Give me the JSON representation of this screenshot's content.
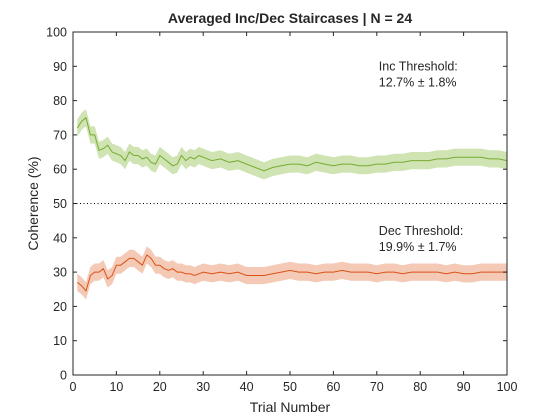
{
  "chart_data": {
    "type": "line",
    "title": "Averaged Inc/Dec Staircases | N = 24",
    "xlabel": "Trial Number",
    "ylabel": "Coherence (%)",
    "xlim": [
      0,
      100
    ],
    "ylim": [
      0,
      100
    ],
    "xticks": [
      0,
      10,
      20,
      30,
      40,
      50,
      60,
      70,
      80,
      90,
      100
    ],
    "yticks": [
      0,
      10,
      20,
      30,
      40,
      50,
      60,
      70,
      80,
      90,
      100
    ],
    "grid": false,
    "reference_line": {
      "y": 50,
      "style": "dotted"
    },
    "series": [
      {
        "color": "#77ac30",
        "band_color": "#cfe3b3",
        "band_halfwidth": 2.5,
        "x": [
          1,
          2,
          3,
          4,
          5,
          6,
          7,
          8,
          9,
          10,
          11,
          12,
          13,
          14,
          15,
          16,
          17,
          18,
          19,
          20,
          21,
          22,
          23,
          24,
          25,
          26,
          27,
          28,
          29,
          30,
          32,
          34,
          36,
          38,
          40,
          42,
          44,
          46,
          48,
          50,
          52,
          54,
          56,
          58,
          60,
          62,
          64,
          66,
          68,
          70,
          72,
          74,
          76,
          78,
          80,
          82,
          84,
          86,
          88,
          90,
          92,
          94,
          96,
          98,
          100
        ],
        "values": [
          72,
          74,
          75,
          70,
          70,
          65.5,
          66,
          67,
          65,
          64.5,
          64,
          62.5,
          65,
          64,
          64,
          63,
          63.5,
          62,
          61.5,
          64,
          63,
          62,
          61,
          61.5,
          64,
          62.5,
          63.5,
          63,
          64,
          63.5,
          62.5,
          63,
          62,
          62.5,
          61.5,
          60.5,
          59.5,
          60.5,
          61,
          61.5,
          61.5,
          61,
          62,
          61.5,
          61,
          61.5,
          61.5,
          61,
          61,
          61.5,
          61.5,
          62,
          62,
          62.5,
          62.5,
          62.5,
          63,
          63,
          63.5,
          63.5,
          63.5,
          63.5,
          63,
          63,
          62.5
        ]
      },
      {
        "color": "#d95319",
        "band_color": "#f4c9b5",
        "band_halfwidth": 2.5,
        "x": [
          1,
          2,
          3,
          4,
          5,
          6,
          7,
          8,
          9,
          10,
          11,
          12,
          13,
          14,
          15,
          16,
          17,
          18,
          19,
          20,
          21,
          22,
          23,
          24,
          25,
          26,
          27,
          28,
          29,
          30,
          32,
          34,
          36,
          38,
          40,
          42,
          44,
          46,
          48,
          50,
          52,
          54,
          56,
          58,
          60,
          62,
          64,
          66,
          68,
          70,
          72,
          74,
          76,
          78,
          80,
          82,
          84,
          86,
          88,
          90,
          92,
          94,
          96,
          98,
          100
        ],
        "values": [
          27,
          26,
          24.5,
          29,
          30,
          30,
          31,
          28,
          29,
          32,
          32,
          33,
          34,
          34,
          33,
          32,
          35,
          34,
          32,
          32,
          31,
          30.5,
          31,
          30,
          30,
          29.5,
          29.5,
          29,
          29.5,
          30,
          29.5,
          30,
          29.5,
          30,
          29,
          29,
          29,
          29.5,
          30,
          30.5,
          30,
          30,
          29.5,
          30,
          30,
          30.5,
          30,
          30,
          30,
          29.5,
          30,
          30,
          29.5,
          30,
          30,
          30,
          30,
          29.5,
          30,
          29.5,
          29.5,
          30,
          30,
          30,
          30
        ]
      }
    ],
    "annotations": [
      {
        "lines": [
          "Inc Threshold:",
          "12.7% ± 1.8%"
        ],
        "x": 70,
        "y": 90
      },
      {
        "lines": [
          "Dec Threshold:",
          "19.9% ± 1.7%"
        ],
        "x": 70,
        "y": 42
      }
    ]
  }
}
